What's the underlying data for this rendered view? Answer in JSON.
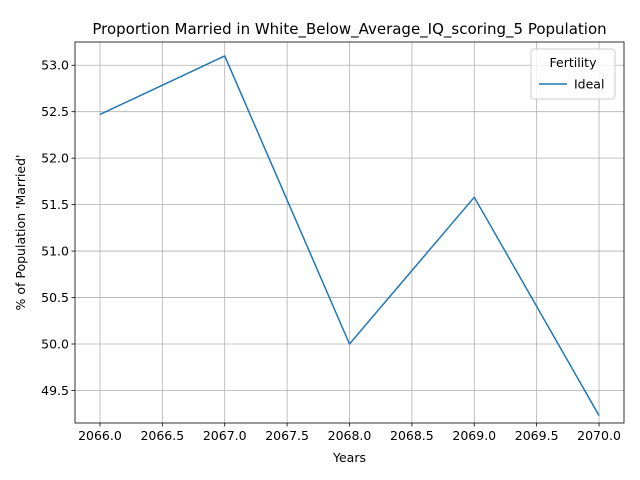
{
  "chart_data": {
    "type": "line",
    "title": "Proportion Married in White_Below_Average_IQ_scoring_5 Population",
    "xlabel": "Years",
    "ylabel": "% of Population 'Married'",
    "x": [
      2066,
      2067,
      2068,
      2069,
      2070
    ],
    "series": [
      {
        "name": "Ideal",
        "values": [
          52.47,
          53.1,
          50.0,
          51.58,
          49.23
        ],
        "color": "#1f77b4"
      }
    ],
    "xlim": [
      2065.8,
      2070.2
    ],
    "ylim": [
      49.15,
      53.25
    ],
    "xticks": [
      "2066.0",
      "2066.5",
      "2067.0",
      "2067.5",
      "2068.0",
      "2068.5",
      "2069.0",
      "2069.5",
      "2070.0"
    ],
    "yticks": [
      "49.5",
      "50.0",
      "50.5",
      "51.0",
      "51.5",
      "52.0",
      "52.5",
      "53.0"
    ],
    "grid": true,
    "legend": {
      "title": "Fertility",
      "placement": "top-right"
    }
  }
}
